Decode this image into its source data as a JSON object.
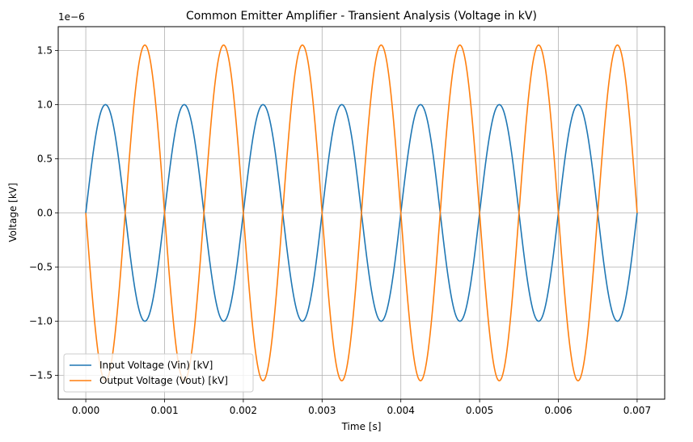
{
  "chart_data": {
    "type": "line",
    "title": "Common Emitter Amplifier - Transient Analysis (Voltage in kV)",
    "xlabel": "Time [s]",
    "ylabel": "Voltage [kV]",
    "y_offset_text": "1e−6",
    "xlim": [
      -0.00035,
      0.00735
    ],
    "ylim": [
      -1.72,
      1.72
    ],
    "y_scale_note": "values in units of 1e-6 kV",
    "grid": true,
    "legend_position": "lower-left",
    "x_ticks": [
      0.0,
      0.001,
      0.002,
      0.003,
      0.004,
      0.005,
      0.006,
      0.007
    ],
    "x_tick_labels": [
      "0.000",
      "0.001",
      "0.002",
      "0.003",
      "0.004",
      "0.005",
      "0.006",
      "0.007"
    ],
    "y_ticks": [
      -1.5,
      -1.0,
      -0.5,
      0.0,
      0.5,
      1.0,
      1.5
    ],
    "y_tick_labels": [
      "−1.5",
      "−1.0",
      "−0.5",
      "0.0",
      "0.5",
      "1.0",
      "1.5"
    ],
    "series": [
      {
        "name": "Input Voltage (Vin) [kV]",
        "color": "#1f77b4",
        "function": "sine",
        "frequency_hz": 1000,
        "amplitude": 1.0,
        "phase_sign": 1,
        "x_start": 0.0,
        "x_end": 0.007
      },
      {
        "name": "Output Voltage (Vout) [kV]",
        "color": "#ff7f0e",
        "function": "sine",
        "frequency_hz": 1000,
        "amplitude": 1.55,
        "phase_sign": -1,
        "x_start": 0.0,
        "x_end": 0.007
      }
    ]
  }
}
